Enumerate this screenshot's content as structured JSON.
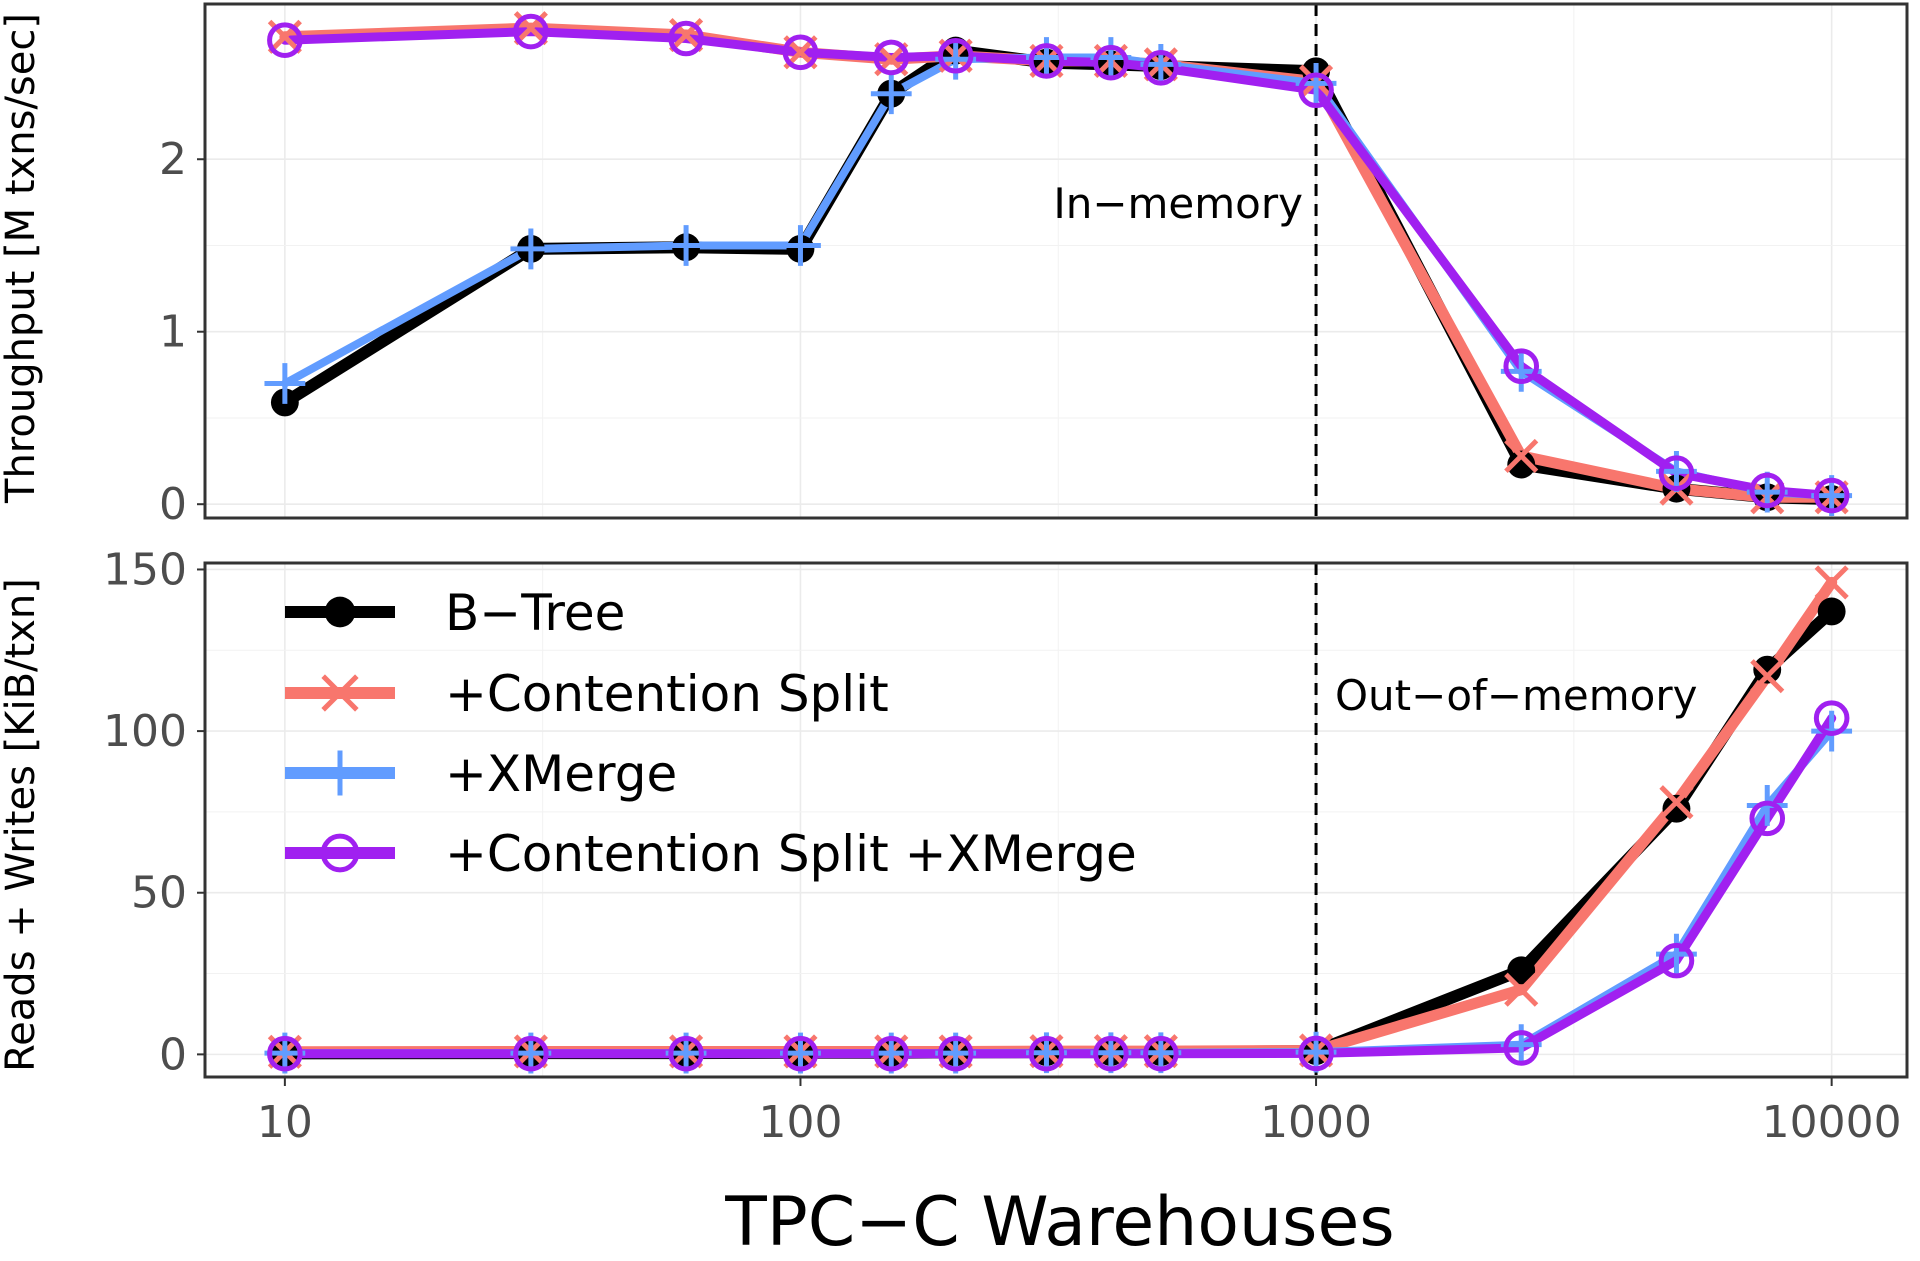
{
  "chart_data": {
    "type": "line",
    "xlabel": "TPC−C Warehouses",
    "x_scale": "log",
    "xlim": [
      7,
      14000
    ],
    "x_ticks": [
      10,
      100,
      1000,
      10000
    ],
    "x_tick_labels": [
      "10",
      "100",
      "1000",
      "10000"
    ],
    "x": [
      10,
      30,
      60,
      100,
      150,
      200,
      300,
      400,
      500,
      1000,
      2500,
      5000,
      7500,
      10000
    ],
    "grid": true,
    "legend_position": "inside bottom panel, top-left",
    "series_meta": [
      {
        "name": "B−Tree",
        "color": "#000000",
        "marker": "filled-circle"
      },
      {
        "name": "+Contention Split",
        "color": "#F8766D",
        "marker": "x"
      },
      {
        "name": "+XMerge",
        "color": "#619CFF",
        "marker": "plus"
      },
      {
        "name": "+Contention Split +XMerge",
        "color": "#A020F0",
        "marker": "open-circle"
      }
    ],
    "panels": [
      {
        "id": "throughput",
        "ylabel": "Throughput [M txns/sec]",
        "ylim": [
          -0.08,
          2.9
        ],
        "y_ticks": [
          0,
          1,
          2
        ],
        "y_tick_labels": [
          "0",
          "1",
          "2"
        ],
        "vline_x": 1000,
        "annotation": "In−memory",
        "series": [
          {
            "name": "B−Tree",
            "values": [
              0.59,
              1.48,
              1.49,
              1.48,
              2.38,
              2.63,
              2.56,
              2.55,
              2.54,
              2.51,
              0.23,
              0.09,
              0.04,
              0.03
            ]
          },
          {
            "name": "+Contention Split",
            "values": [
              2.71,
              2.76,
              2.72,
              2.62,
              2.58,
              2.6,
              2.57,
              2.57,
              2.55,
              2.45,
              0.28,
              0.09,
              0.04,
              0.04
            ]
          },
          {
            "name": "+XMerge",
            "values": [
              0.7,
              1.48,
              1.5,
              1.5,
              2.38,
              2.58,
              2.59,
              2.59,
              2.55,
              2.44,
              0.77,
              0.19,
              0.07,
              0.05
            ]
          },
          {
            "name": "+Contention Split +XMerge",
            "values": [
              2.69,
              2.74,
              2.7,
              2.62,
              2.59,
              2.6,
              2.57,
              2.56,
              2.53,
              2.4,
              0.8,
              0.18,
              0.08,
              0.05
            ]
          }
        ]
      },
      {
        "id": "io",
        "ylabel": "Reads + Writes [KiB/txn]",
        "ylim": [
          -7,
          152
        ],
        "y_ticks": [
          0,
          50,
          100,
          150
        ],
        "y_tick_labels": [
          "0",
          "50",
          "100",
          "150"
        ],
        "vline_x": 1000,
        "annotation": "Out−of−memory",
        "series": [
          {
            "name": "B−Tree",
            "values": [
              0.3,
              0.4,
              0.4,
              0.5,
              0.5,
              0.6,
              0.7,
              0.7,
              0.7,
              1.0,
              26,
              76,
              119,
              137
            ]
          },
          {
            "name": "+Contention Split",
            "values": [
              0.8,
              0.9,
              0.9,
              0.9,
              0.9,
              0.9,
              1.0,
              1.0,
              1.0,
              1.2,
              20,
              78,
              117,
              146
            ]
          },
          {
            "name": "+XMerge",
            "values": [
              0.4,
              0.4,
              0.4,
              0.4,
              0.4,
              0.4,
              0.5,
              0.5,
              0.5,
              0.7,
              3,
              31,
              77,
              100
            ]
          },
          {
            "name": "+Contention Split +XMerge",
            "values": [
              0.2,
              0.2,
              0.2,
              0.2,
              0.2,
              0.2,
              0.2,
              0.2,
              0.2,
              0.3,
              2,
              29,
              73,
              104
            ]
          }
        ]
      }
    ]
  }
}
